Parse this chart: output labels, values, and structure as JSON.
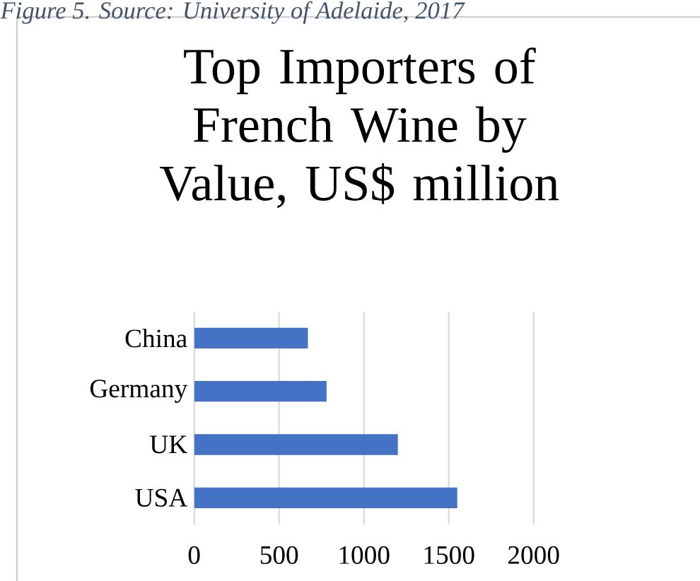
{
  "chart_data": {
    "type": "bar",
    "orientation": "horizontal",
    "title": "Top Importers of French Wine by Value, US$ million",
    "annotations": [
      "Figure 5. Source: University of Adelaide, 2017"
    ],
    "categories": [
      "China",
      "Germany",
      "UK",
      "USA"
    ],
    "values": [
      670,
      780,
      1200,
      1550
    ],
    "color": "#4472c4",
    "xlim": [
      0,
      2000
    ],
    "xticks": [
      0,
      500,
      1000,
      1500,
      2000
    ],
    "grid": "x"
  }
}
